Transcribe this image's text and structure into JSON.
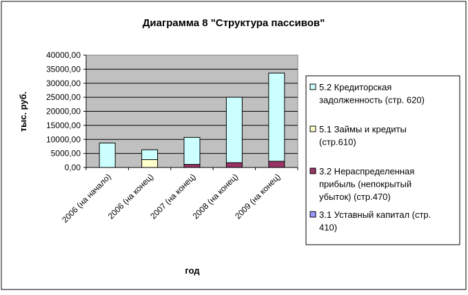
{
  "chart_data": {
    "type": "bar",
    "stacked": true,
    "title": "Диаграмма 8  \"Структура пассивов\"",
    "xlabel": "год",
    "ylabel": "тыс. руб.",
    "ylim": [
      0,
      40000
    ],
    "yticks": [
      0,
      5000,
      10000,
      15000,
      20000,
      25000,
      30000,
      35000,
      40000
    ],
    "ytick_labels": [
      "0,00",
      "5000,00",
      "10000,00",
      "15000,00",
      "20000,00",
      "25000,00",
      "30000,00",
      "35000,00",
      "40000,00"
    ],
    "categories": [
      "2006   (на начало)",
      "2006 (на конец)",
      "2007   (на конец)",
      "2008   (на конец)",
      "2009   (на конец)"
    ],
    "grid": true,
    "legend_position": "right",
    "series": [
      {
        "name": "3.1 Уставный капитал (стр. 410)",
        "color": "#9999ff",
        "values": [
          10,
          10,
          10,
          10,
          10
        ]
      },
      {
        "name": "3.2 Нераспределенная прибыль (непокрытый убыток) (стр.470)",
        "color": "#993366",
        "values": [
          0,
          0,
          1100,
          1700,
          2200
        ]
      },
      {
        "name": "5.1 Займы и кредиты (стр.610)",
        "color": "#ffffcc",
        "values": [
          0,
          2800,
          0,
          0,
          0
        ]
      },
      {
        "name": "5.2 Кредиторская задолженность (стр. 620)",
        "color": "#ccffff",
        "values": [
          8700,
          3500,
          9600,
          23300,
          31400
        ]
      }
    ],
    "legend": [
      {
        "series": 3,
        "lines": [
          "5.2 Кредиторская",
          "задолженность (стр. 620)"
        ]
      },
      {
        "series": 2,
        "lines": [
          "5.1 Займы и кредиты",
          "(стр.610)"
        ]
      },
      {
        "series": 1,
        "lines": [
          "3.2 Нераспределенная",
          "прибыль (непокрытый",
          "убыток) (стр.470)"
        ]
      },
      {
        "series": 0,
        "lines": [
          "3.1 Уставный капитал (стр.",
          "410)"
        ]
      }
    ]
  }
}
